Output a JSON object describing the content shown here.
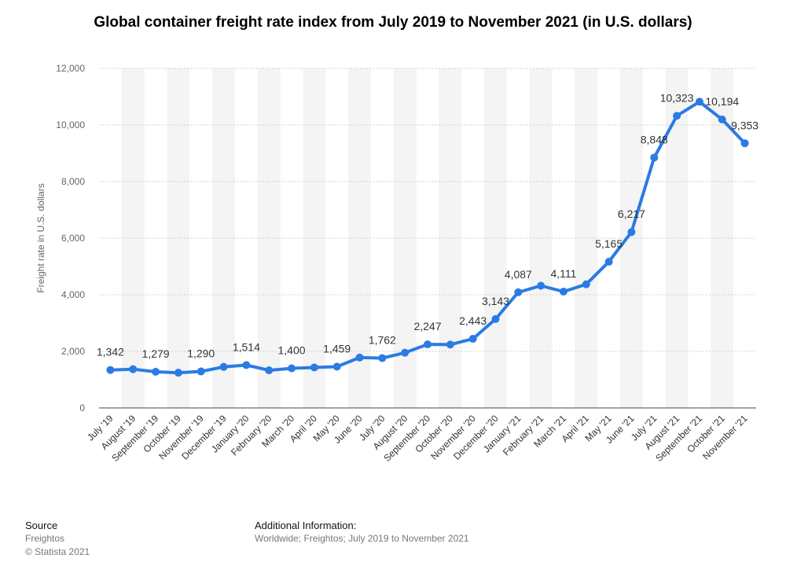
{
  "title": "Global container freight rate index from July 2019 to November 2021 (in U.S. dollars)",
  "footer": {
    "source_heading": "Source",
    "source_name": "Freightos",
    "copyright": "© Statista 2021",
    "additional_heading": "Additional Information:",
    "additional_text": "Worldwide; Freightos; July 2019 to November 2021"
  },
  "chart_data": {
    "type": "line",
    "title": "Global container freight rate index from July 2019 to November 2021 (in U.S. dollars)",
    "xlabel": "",
    "ylabel": "Freight rate in U.S. dollars",
    "ylim": [
      0,
      12000
    ],
    "yticks": [
      0,
      2000,
      4000,
      6000,
      8000,
      10000,
      12000
    ],
    "ytick_labels": [
      "0",
      "2,000",
      "4,000",
      "6,000",
      "8,000",
      "10,000",
      "12,000"
    ],
    "grid": true,
    "line_color": "#2a7be4",
    "categories": [
      "July '19",
      "August '19",
      "September '19",
      "October '19",
      "November '19",
      "December '19",
      "January '20",
      "February '20",
      "March '20",
      "April '20",
      "May '20",
      "June '20",
      "July '20",
      "August '20",
      "September '20",
      "October '20",
      "November '20",
      "December '20",
      "January '21",
      "February '21",
      "March '21",
      "April '21",
      "May '21",
      "June '21",
      "July '21",
      "August '21",
      "September '21",
      "October '21",
      "November '21"
    ],
    "values": [
      1342,
      1370,
      1279,
      1245,
      1290,
      1450,
      1514,
      1330,
      1400,
      1430,
      1459,
      1780,
      1762,
      1950,
      2247,
      2240,
      2443,
      3143,
      4087,
      4320,
      4111,
      4370,
      5165,
      6217,
      8848,
      10323,
      10822,
      10194,
      9353
    ],
    "data_labels": [
      "1,342",
      "",
      "1,279",
      "",
      "1,290",
      "",
      "1,514",
      "",
      "1,400",
      "",
      "1,459",
      "",
      "1,762",
      "",
      "2,247",
      "",
      "2,443",
      "3,143",
      "4,087",
      "",
      "4,111",
      "",
      "5,165",
      "6,217",
      "8,848",
      "10,323",
      "",
      "10,194",
      "9,353"
    ]
  }
}
